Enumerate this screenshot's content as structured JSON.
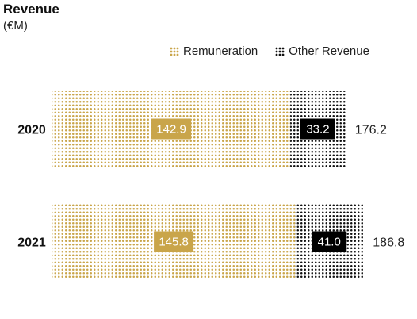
{
  "title": "Revenue",
  "subtitle": "(€M)",
  "colors": {
    "remuneration": "#c9a54a",
    "other": "#111111",
    "remuneration_label_bg": "#c9a54a",
    "other_label_bg": "#000000",
    "label_text": "#ffffff"
  },
  "legend": [
    {
      "name": "Remuneration",
      "color": "#c9a54a"
    },
    {
      "name": "Other Revenue",
      "color": "#111111"
    }
  ],
  "chart_data": {
    "type": "bar",
    "orientation": "horizontal",
    "stacked": true,
    "title": "Revenue",
    "subtitle": "(€M)",
    "categories": [
      "2020",
      "2021"
    ],
    "series": [
      {
        "name": "Remuneration",
        "values": [
          142.9,
          145.8
        ],
        "labels": [
          "142.9",
          "145.8"
        ]
      },
      {
        "name": "Other Revenue",
        "values": [
          33.2,
          41.0
        ],
        "labels": [
          "33.2",
          "41.0"
        ]
      }
    ],
    "totals": [
      "176.2",
      "186.8"
    ],
    "legend_position": "top-right",
    "grid": false
  }
}
